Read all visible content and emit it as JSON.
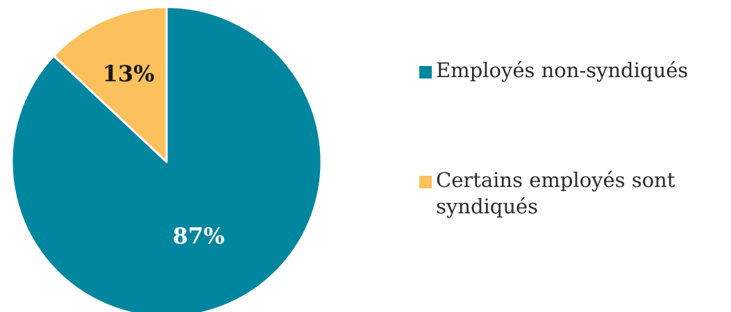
{
  "chart_data": {
    "type": "pie",
    "title": "",
    "slices": [
      {
        "label": "Employés non-syndiqués",
        "value": 87,
        "display": "87%",
        "color": "#00869e",
        "label_color": "#ffffff"
      },
      {
        "label": "Certains employés sont syndiqués",
        "value": 13,
        "display": "13%",
        "color": "#fcc05d",
        "label_color": "#1a1a1a"
      }
    ],
    "start_angle_deg": 0,
    "direction": "clockwise",
    "legend_placement": "right"
  }
}
